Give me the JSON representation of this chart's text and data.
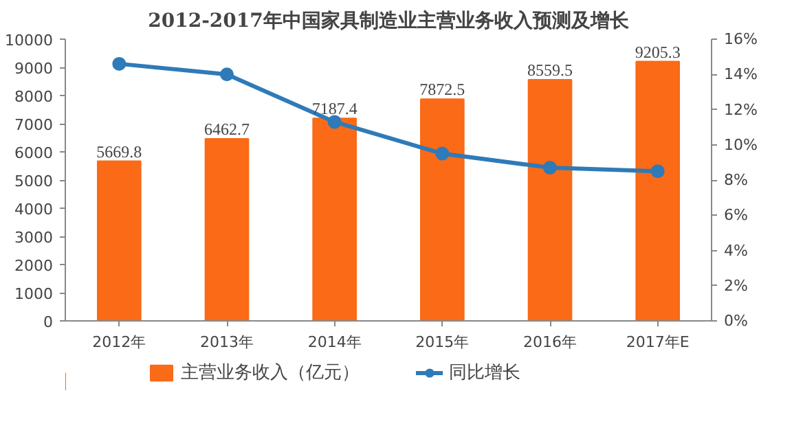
{
  "chart_data": {
    "type": "bar",
    "title": "2012-2017年中国家具制造业主营业务收入预测及增长",
    "categories": [
      "2012年",
      "2013年",
      "2014年",
      "2015年",
      "2016年",
      "2017年E"
    ],
    "series": [
      {
        "name": "主营业务收入（亿元）",
        "color": "#fa6a17",
        "values": [
          5669.8,
          6462.7,
          7187.4,
          7872.5,
          8559.5,
          9205.3
        ],
        "value_labels": [
          "5669.8",
          "6462.7",
          "7187.4",
          "7872.5",
          "8559.5",
          "9205.3"
        ]
      },
      {
        "name": "同比增长",
        "type": "line",
        "axis": "y2",
        "color": "#2f7ab8",
        "values": [
          14.6,
          14.0,
          11.3,
          9.5,
          8.7,
          8.5
        ]
      }
    ],
    "ylim": [
      0,
      10000
    ],
    "yticks": [
      0,
      1000,
      2000,
      3000,
      4000,
      5000,
      6000,
      7000,
      8000,
      9000,
      10000
    ],
    "y2lim": [
      0,
      16
    ],
    "y2ticks": [
      {
        "value": 0,
        "label": "0%"
      },
      {
        "value": 2,
        "label": "2%"
      },
      {
        "value": 4,
        "label": "4%"
      },
      {
        "value": 6,
        "label": "6%"
      },
      {
        "value": 8,
        "label": "8%"
      },
      {
        "value": 10,
        "label": "10%"
      },
      {
        "value": 12,
        "label": "12%"
      },
      {
        "value": 14,
        "label": "14%"
      },
      {
        "value": 16,
        "label": "16%"
      }
    ],
    "grid": false,
    "legend": "bottom",
    "marker": "circle",
    "line_style": "solid"
  }
}
